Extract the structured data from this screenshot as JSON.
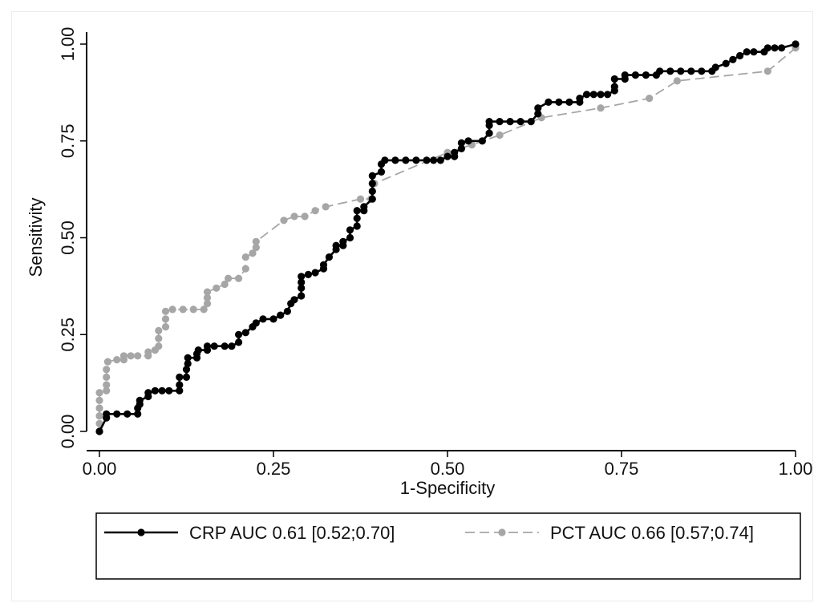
{
  "chart_data": {
    "type": "line",
    "xlabel": "1-Specificity",
    "ylabel": "Sensitivity",
    "xlim": [
      0,
      1
    ],
    "ylim": [
      0,
      1
    ],
    "xticks": [
      "0.00",
      "0.25",
      "0.50",
      "0.75",
      "1.00"
    ],
    "yticks": [
      "0.00",
      "0.25",
      "0.50",
      "0.75",
      "1.00"
    ],
    "grid": false,
    "legend_position": "bottom",
    "series": [
      {
        "name": "CRP AUC 0.61 [0.52;0.70]",
        "color": "#000000",
        "style": "solid",
        "points": [
          [
            0,
            0
          ],
          [
            0.01,
            0.035
          ],
          [
            0.01,
            0.045
          ],
          [
            0.025,
            0.045
          ],
          [
            0.04,
            0.045
          ],
          [
            0.055,
            0.045
          ],
          [
            0.055,
            0.06
          ],
          [
            0.058,
            0.07
          ],
          [
            0.058,
            0.08
          ],
          [
            0.07,
            0.09
          ],
          [
            0.07,
            0.1
          ],
          [
            0.08,
            0.105
          ],
          [
            0.09,
            0.105
          ],
          [
            0.1,
            0.105
          ],
          [
            0.115,
            0.105
          ],
          [
            0.115,
            0.12
          ],
          [
            0.115,
            0.14
          ],
          [
            0.125,
            0.14
          ],
          [
            0.125,
            0.16
          ],
          [
            0.127,
            0.175
          ],
          [
            0.127,
            0.19
          ],
          [
            0.14,
            0.19
          ],
          [
            0.14,
            0.2
          ],
          [
            0.142,
            0.21
          ],
          [
            0.155,
            0.21
          ],
          [
            0.155,
            0.22
          ],
          [
            0.165,
            0.22
          ],
          [
            0.18,
            0.22
          ],
          [
            0.19,
            0.22
          ],
          [
            0.2,
            0.23
          ],
          [
            0.2,
            0.25
          ],
          [
            0.21,
            0.255
          ],
          [
            0.22,
            0.27
          ],
          [
            0.225,
            0.28
          ],
          [
            0.235,
            0.29
          ],
          [
            0.25,
            0.29
          ],
          [
            0.26,
            0.3
          ],
          [
            0.27,
            0.31
          ],
          [
            0.275,
            0.33
          ],
          [
            0.28,
            0.34
          ],
          [
            0.29,
            0.35
          ],
          [
            0.29,
            0.37
          ],
          [
            0.29,
            0.385
          ],
          [
            0.29,
            0.4
          ],
          [
            0.3,
            0.405
          ],
          [
            0.31,
            0.41
          ],
          [
            0.322,
            0.42
          ],
          [
            0.322,
            0.43
          ],
          [
            0.33,
            0.45
          ],
          [
            0.34,
            0.47
          ],
          [
            0.34,
            0.48
          ],
          [
            0.35,
            0.48
          ],
          [
            0.35,
            0.49
          ],
          [
            0.36,
            0.5
          ],
          [
            0.36,
            0.52
          ],
          [
            0.37,
            0.53
          ],
          [
            0.37,
            0.55
          ],
          [
            0.37,
            0.57
          ],
          [
            0.38,
            0.57
          ],
          [
            0.38,
            0.58
          ],
          [
            0.392,
            0.6
          ],
          [
            0.392,
            0.62
          ],
          [
            0.392,
            0.64
          ],
          [
            0.392,
            0.66
          ],
          [
            0.405,
            0.67
          ],
          [
            0.405,
            0.69
          ],
          [
            0.41,
            0.7
          ],
          [
            0.425,
            0.7
          ],
          [
            0.44,
            0.7
          ],
          [
            0.455,
            0.7
          ],
          [
            0.47,
            0.7
          ],
          [
            0.48,
            0.7
          ],
          [
            0.49,
            0.7
          ],
          [
            0.5,
            0.71
          ],
          [
            0.51,
            0.71
          ],
          [
            0.51,
            0.72
          ],
          [
            0.52,
            0.73
          ],
          [
            0.52,
            0.745
          ],
          [
            0.53,
            0.75
          ],
          [
            0.55,
            0.75
          ],
          [
            0.56,
            0.77
          ],
          [
            0.56,
            0.79
          ],
          [
            0.56,
            0.8
          ],
          [
            0.575,
            0.8
          ],
          [
            0.59,
            0.8
          ],
          [
            0.605,
            0.8
          ],
          [
            0.62,
            0.8
          ],
          [
            0.63,
            0.82
          ],
          [
            0.63,
            0.835
          ],
          [
            0.645,
            0.85
          ],
          [
            0.66,
            0.85
          ],
          [
            0.675,
            0.85
          ],
          [
            0.69,
            0.85
          ],
          [
            0.69,
            0.86
          ],
          [
            0.7,
            0.87
          ],
          [
            0.71,
            0.87
          ],
          [
            0.72,
            0.87
          ],
          [
            0.73,
            0.87
          ],
          [
            0.74,
            0.88
          ],
          [
            0.74,
            0.89
          ],
          [
            0.74,
            0.91
          ],
          [
            0.755,
            0.91
          ],
          [
            0.755,
            0.92
          ],
          [
            0.77,
            0.92
          ],
          [
            0.785,
            0.92
          ],
          [
            0.8,
            0.92
          ],
          [
            0.805,
            0.93
          ],
          [
            0.82,
            0.93
          ],
          [
            0.835,
            0.93
          ],
          [
            0.85,
            0.93
          ],
          [
            0.865,
            0.93
          ],
          [
            0.88,
            0.93
          ],
          [
            0.885,
            0.94
          ],
          [
            0.9,
            0.95
          ],
          [
            0.91,
            0.96
          ],
          [
            0.92,
            0.97
          ],
          [
            0.93,
            0.98
          ],
          [
            0.94,
            0.98
          ],
          [
            0.955,
            0.98
          ],
          [
            0.96,
            0.99
          ],
          [
            0.97,
            0.99
          ],
          [
            0.98,
            0.99
          ],
          [
            1,
            1
          ]
        ]
      },
      {
        "name": "PCT AUC 0.66 [0.57;0.74]",
        "color": "#a6a6a6",
        "style": "dashed",
        "points": [
          [
            0,
            0
          ],
          [
            0,
            0.02
          ],
          [
            0,
            0.04
          ],
          [
            0,
            0.06
          ],
          [
            0,
            0.08
          ],
          [
            0,
            0.1
          ],
          [
            0.01,
            0.105
          ],
          [
            0.01,
            0.12
          ],
          [
            0.01,
            0.14
          ],
          [
            0.01,
            0.16
          ],
          [
            0.012,
            0.18
          ],
          [
            0.025,
            0.185
          ],
          [
            0.035,
            0.185
          ],
          [
            0.035,
            0.195
          ],
          [
            0.045,
            0.195
          ],
          [
            0.055,
            0.195
          ],
          [
            0.07,
            0.195
          ],
          [
            0.07,
            0.205
          ],
          [
            0.08,
            0.21
          ],
          [
            0.085,
            0.22
          ],
          [
            0.085,
            0.24
          ],
          [
            0.085,
            0.26
          ],
          [
            0.095,
            0.27
          ],
          [
            0.095,
            0.29
          ],
          [
            0.095,
            0.31
          ],
          [
            0.105,
            0.315
          ],
          [
            0.12,
            0.315
          ],
          [
            0.135,
            0.315
          ],
          [
            0.15,
            0.315
          ],
          [
            0.155,
            0.33
          ],
          [
            0.155,
            0.345
          ],
          [
            0.155,
            0.36
          ],
          [
            0.168,
            0.37
          ],
          [
            0.18,
            0.38
          ],
          [
            0.185,
            0.395
          ],
          [
            0.2,
            0.395
          ],
          [
            0.21,
            0.42
          ],
          [
            0.21,
            0.45
          ],
          [
            0.22,
            0.46
          ],
          [
            0.225,
            0.475
          ],
          [
            0.225,
            0.49
          ],
          [
            0.265,
            0.545
          ],
          [
            0.28,
            0.555
          ],
          [
            0.295,
            0.555
          ],
          [
            0.31,
            0.57
          ],
          [
            0.325,
            0.58
          ],
          [
            0.375,
            0.6
          ],
          [
            0.39,
            0.6
          ],
          [
            0.395,
            0.64
          ],
          [
            0.5,
            0.72
          ],
          [
            0.535,
            0.74
          ],
          [
            0.575,
            0.765
          ],
          [
            0.635,
            0.81
          ],
          [
            0.72,
            0.835
          ],
          [
            0.79,
            0.86
          ],
          [
            0.83,
            0.905
          ],
          [
            0.96,
            0.93
          ],
          [
            1,
            0.99
          ],
          [
            1,
            1
          ]
        ]
      }
    ]
  }
}
